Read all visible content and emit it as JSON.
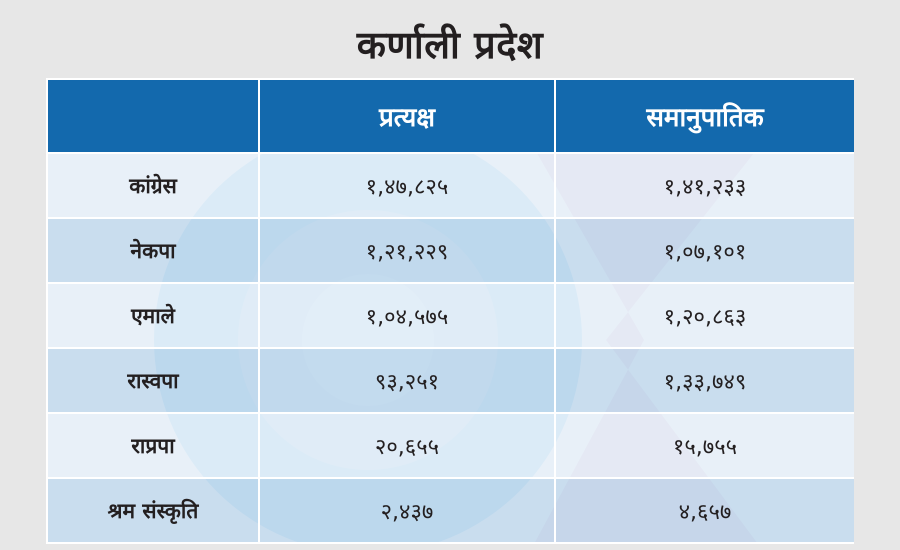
{
  "title": "कर्णाली प्रदेश",
  "table": {
    "headers": [
      "",
      "प्रत्यक्ष",
      "समानुपातिक"
    ],
    "rows": [
      {
        "party": "कांग्रेस",
        "direct": "१,४७,८२५",
        "proportional": "१,४१,२३३"
      },
      {
        "party": "नेकपा",
        "direct": "१,२१,२२९",
        "proportional": "१,०७,१०१"
      },
      {
        "party": "एमाले",
        "direct": "१,०४,५७५",
        "proportional": "१,२०,८६३"
      },
      {
        "party": "रास्वपा",
        "direct": "९३,२५१",
        "proportional": "१,३३,७४९"
      },
      {
        "party": "राप्रपा",
        "direct": "२०,६५५",
        "proportional": "१५,७५५"
      },
      {
        "party": "श्रम संस्कृति",
        "direct": "२,४३७",
        "proportional": "४,६५७"
      }
    ]
  },
  "colors": {
    "background": "#e7e7e7",
    "header": "#1369ad",
    "row_light": "#e1ecf6",
    "row_dark": "#bad3e9",
    "title_text": "#231f20"
  }
}
